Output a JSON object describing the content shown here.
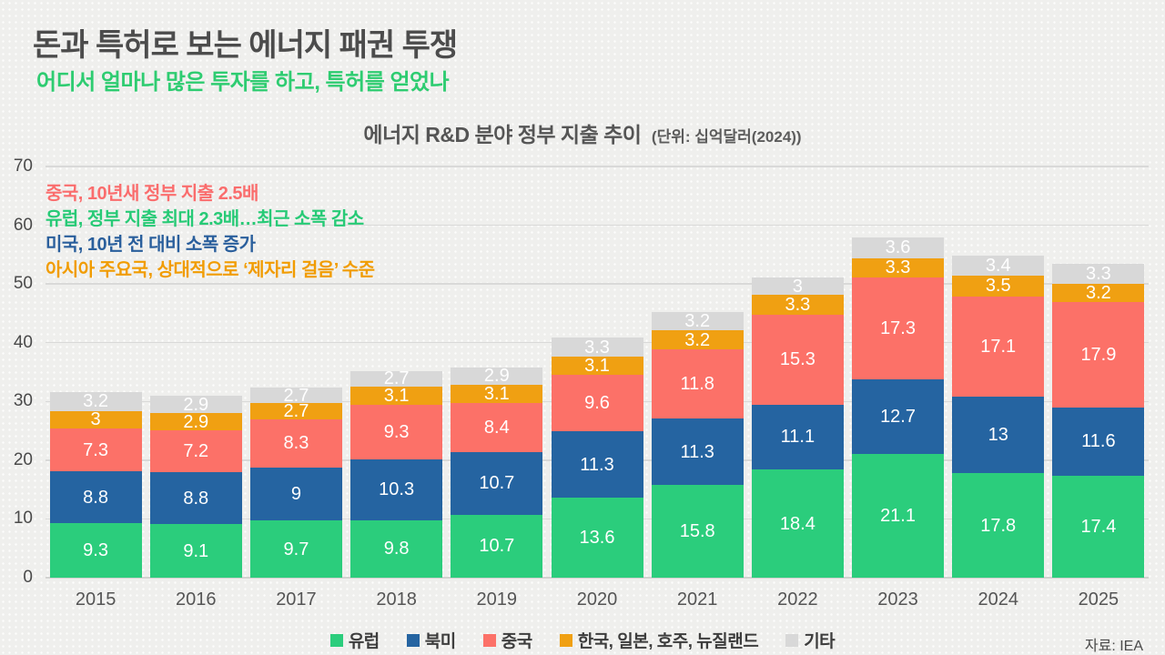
{
  "header": {
    "title": "돈과 특허로 보는 에너지 패권 투쟁",
    "subtitle": "어디서 얼마나 많은 투자를 하고, 특허를 얻었나"
  },
  "annotations": [
    {
      "text": "중국, 10년새 정부 지출 2.5배",
      "color": "#fa6d6d"
    },
    {
      "text": "유럽, 정부 지출 최대 2.3배…최근 소폭 감소",
      "color": "#27ca76"
    },
    {
      "text": "미국, 10년 전 대비 소폭 증가",
      "color": "#2a5f9c"
    },
    {
      "text": "아시아 주요국, 상대적으로 ‘제자리 걸음’ 수준",
      "color": "#f19c00"
    }
  ],
  "chart_data": {
    "type": "bar",
    "stacked": true,
    "title": "에너지 R&D 분야 정부 지출 추이",
    "unit_label": "(단위: 십억달러(2024))",
    "categories": [
      "2015",
      "2016",
      "2017",
      "2018",
      "2019",
      "2020",
      "2021",
      "2022",
      "2023",
      "2024",
      "2025"
    ],
    "series": [
      {
        "name": "유럽",
        "color": "#2bcd7c",
        "values": [
          9.3,
          9.1,
          9.7,
          9.8,
          10.7,
          13.6,
          15.8,
          18.4,
          21.1,
          17.8,
          17.4
        ]
      },
      {
        "name": "북미",
        "color": "#2564a1",
        "values": [
          8.8,
          8.8,
          9,
          10.3,
          10.7,
          11.3,
          11.3,
          11.1,
          12.7,
          13,
          11.6
        ]
      },
      {
        "name": "중국",
        "color": "#fc7168",
        "values": [
          7.3,
          7.2,
          8.3,
          9.3,
          8.4,
          9.6,
          11.8,
          15.3,
          17.3,
          17.1,
          17.9
        ]
      },
      {
        "name": "한국, 일본, 호주, 뉴질랜드",
        "color": "#f0a012",
        "values": [
          3,
          2.9,
          2.7,
          3.1,
          3.1,
          3.1,
          3.2,
          3.3,
          3.3,
          3.5,
          3.2
        ]
      },
      {
        "name": "기타",
        "color": "#d8d8d8",
        "values": [
          3.2,
          2.9,
          2.7,
          2.7,
          2.9,
          3.3,
          3.2,
          3,
          3.6,
          3.4,
          3.3
        ]
      }
    ],
    "ylim": [
      0,
      70
    ],
    "yticks": [
      0,
      10,
      20,
      30,
      40,
      50,
      60,
      70
    ],
    "grid": true,
    "legend_position": "bottom",
    "value_labels": true
  },
  "source": "자료: IEA"
}
